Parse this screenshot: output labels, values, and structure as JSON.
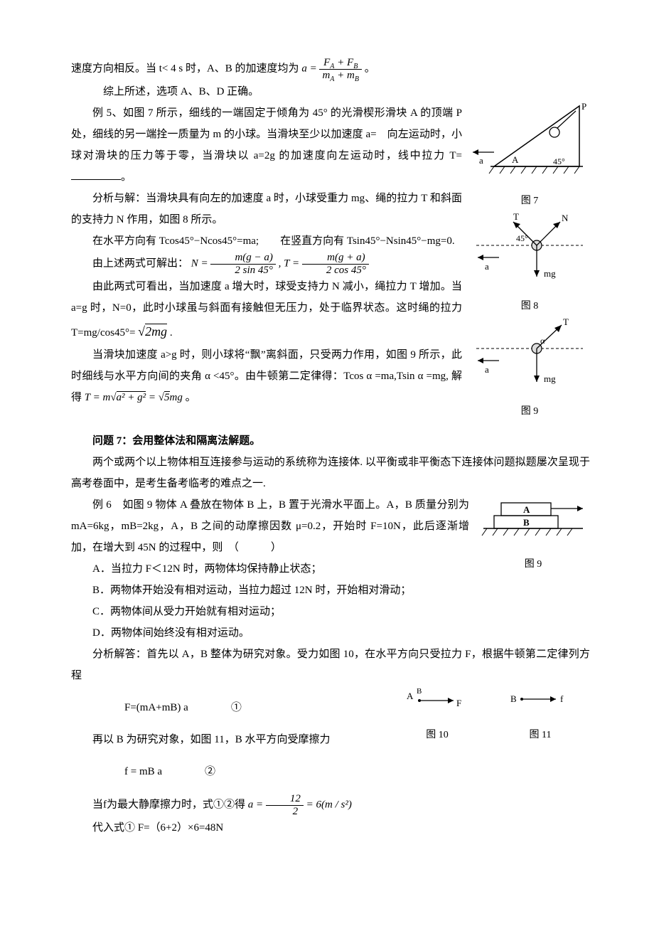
{
  "p1_a": "速度方向相反。当 t< 4 s 时，A、B 的加速度均为",
  "p1_after": "。",
  "eq1_lhs": "a =",
  "eq1_num": "F<sub>A</sub> + F<sub>B</sub>",
  "eq1_den": "m<sub>A</sub> + m<sub>B</sub>",
  "p2": "综上所述，选项 A、B、D 正确。",
  "p3": "例 5、如图 7 所示，细线的一端固定于倾角为 45° 的光滑楔形滑块 A 的顶端 P 处，细线的另一端拴一质量为 m 的小球。当滑块至少以加速度 a=　向左运动时，小球对滑块的压力等于零，当滑块以 a=2g 的加速度向左运动时，线中拉力 T=",
  "p3_end": "。",
  "p4": "分析与解：当滑块具有向左的加速度 a 时，小球受重力 mg、绳的拉力 T 和斜面的支持力 N 作用，如图 8 所示。",
  "p5": "在水平方向有 Tcos45°−Ncos45°=ma;　　在竖直方向有 Tsin45°−Nsin45°−mg=0.",
  "p6_a": "由上述两式可解出：",
  "eq2_N_num": "m(g − a)",
  "eq2_N_den": "2 sin 45°",
  "eq2_T_num": "m(g + a)",
  "eq2_T_den": "2 cos 45°",
  "p7": "由此两式可看出，当加速度 a 增大时，球受支持力 N 减小，绳拉力 T 增加。当 a=g 时，N=0，此时小球虽与斜面有接触但无压力，处于临界状态。这时绳的拉力 T=mg/cos45°=",
  "eq3": "√2 mg",
  "p7_end": ".",
  "p8_a": "当滑块加速度 a>g 时，则小球将“飘”离斜面，只受两力作用，如图 9 所示，此时细线与水平方向间的夹角 α <45°。由牛顿第二定律得：Tcos α =ma,Tsin α =mg,  解得",
  "eq4": "T = m√(a² + g²) = √5 mg",
  "p8_end": "。",
  "q7_title": "问题 7：会用整体法和隔离法解题。",
  "p9": "两个或两个以上物体相互连接参与运动的系统称为连接体. 以平衡或非平衡态下连接体问题拟题屡次呈现于高考卷面中，是考生备考临考的难点之一.",
  "p10": "例 6　如图 9 物体 A 叠放在物体 B 上，B 置于光滑水平面上。A，B 质量分别为 mA=6kg，mB=2kg，A，B 之间的动摩擦因数 μ=0.2，开始时 F=10N，此后逐渐增加，在增大到 45N 的过程中，则　（　　　）",
  "optA": "A．当拉力 F＜12N 时，两物体均保持静止状态；",
  "optB": "B．两物体开始没有相对运动，当拉力超过 12N 时，开始相对滑动；",
  "optC": "C．两物体间从受力开始就有相对运动；",
  "optD": "D．两物体间始终没有相对运动。",
  "p11": "分析解答：首先以 A，B 整体为研究对象。受力如图 10，在水平方向只受拉力 F，根据牛顿第二定律列方程",
  "eqF": "F=(mA+mB) a　　　　①",
  "p12": "再以 B 为研究对象，如图 11，B 水平方向受摩擦力",
  "eqf": "f = mB a　　　　②",
  "p13_a": "当f为最大静摩擦力时，式①②得",
  "eq5_lhs": "a =",
  "eq5_num": "12",
  "eq5_den": "2",
  "eq5_rhs": "= 6(m / s²)",
  "p14": "代入式① F=（6+2）×6=48N",
  "fig7": {
    "caption": "图 7",
    "labels": {
      "P": "P",
      "a": "a",
      "A": "A",
      "ang": "45°"
    }
  },
  "fig8": {
    "caption": "图 8",
    "labels": {
      "T": "T",
      "N": "N",
      "a": "a",
      "mg": "mg",
      "ang": "45°"
    }
  },
  "fig9a": {
    "caption": "图 9",
    "labels": {
      "T": "T",
      "a": "a",
      "mg": "mg",
      "alpha": "α"
    }
  },
  "fig9b": {
    "caption": "图 9",
    "labels": {
      "A": "A",
      "B": "B"
    }
  },
  "fig10": {
    "caption": "图 10",
    "labels": {
      "A": "A",
      "B": "B",
      "F": "F"
    }
  },
  "fig11": {
    "caption": "图 11",
    "labels": {
      "B": "B",
      "f": "f"
    }
  },
  "colors": {
    "text": "#000000",
    "bg": "#ffffff",
    "stroke": "#000000",
    "hatch": "#000000"
  }
}
